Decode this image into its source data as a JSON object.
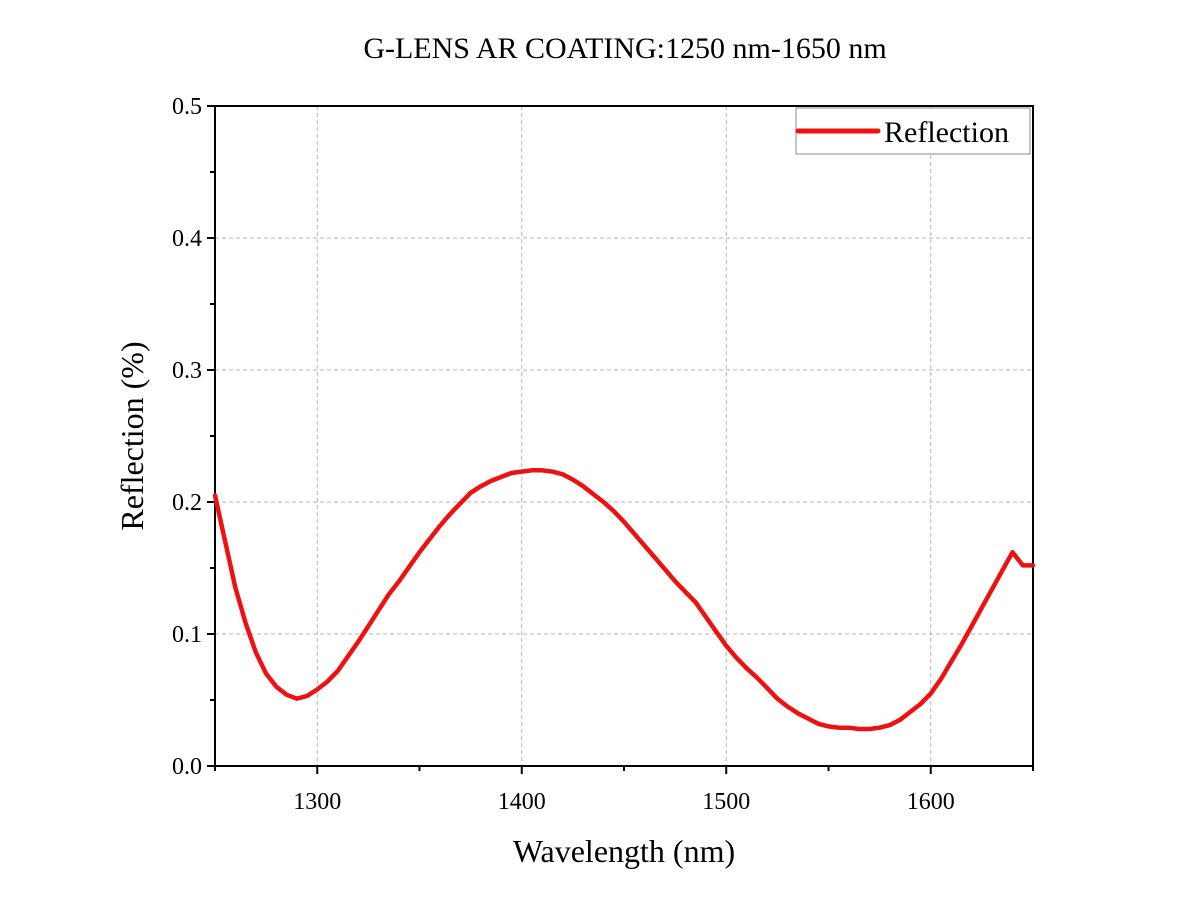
{
  "chart_data": {
    "type": "line",
    "title": "G-LENS AR COATING:1250 nm-1650 nm",
    "xlabel": "Wavelength (nm)",
    "ylabel": "Reflection (%)",
    "xlim": [
      1250,
      1650
    ],
    "ylim": [
      0.0,
      0.5
    ],
    "xticks": [
      1300,
      1400,
      1500,
      1600
    ],
    "xtick_labels": [
      "1300",
      "1400",
      "1500",
      "1600"
    ],
    "yticks": [
      0.0,
      0.1,
      0.2,
      0.3,
      0.4,
      0.5
    ],
    "ytick_labels": [
      "0.0",
      "0.1",
      "0.2",
      "0.3",
      "0.4",
      "0.5"
    ],
    "grid": true,
    "legend_position": "top-right",
    "series": [
      {
        "name": "Reflection",
        "color": "#ee1111",
        "x": [
          1250,
          1255,
          1260,
          1265,
          1270,
          1275,
          1280,
          1285,
          1290,
          1295,
          1300,
          1305,
          1310,
          1315,
          1320,
          1325,
          1330,
          1335,
          1340,
          1345,
          1350,
          1355,
          1360,
          1365,
          1370,
          1375,
          1380,
          1385,
          1390,
          1395,
          1400,
          1405,
          1410,
          1415,
          1420,
          1425,
          1430,
          1435,
          1440,
          1445,
          1450,
          1455,
          1460,
          1465,
          1470,
          1475,
          1480,
          1485,
          1490,
          1495,
          1500,
          1505,
          1510,
          1515,
          1520,
          1525,
          1530,
          1535,
          1540,
          1545,
          1550,
          1555,
          1560,
          1565,
          1570,
          1575,
          1580,
          1585,
          1590,
          1595,
          1600,
          1605,
          1610,
          1615,
          1620,
          1625,
          1630,
          1635,
          1640,
          1645,
          1650
        ],
        "y": [
          0.205,
          0.17,
          0.135,
          0.108,
          0.086,
          0.07,
          0.06,
          0.054,
          0.051,
          0.053,
          0.058,
          0.064,
          0.072,
          0.083,
          0.094,
          0.106,
          0.118,
          0.13,
          0.14,
          0.151,
          0.162,
          0.172,
          0.182,
          0.191,
          0.199,
          0.207,
          0.212,
          0.216,
          0.219,
          0.222,
          0.223,
          0.224,
          0.224,
          0.223,
          0.221,
          0.217,
          0.212,
          0.206,
          0.2,
          0.193,
          0.185,
          0.176,
          0.167,
          0.158,
          0.149,
          0.14,
          0.132,
          0.124,
          0.113,
          0.102,
          0.091,
          0.082,
          0.074,
          0.067,
          0.059,
          0.051,
          0.045,
          0.04,
          0.036,
          0.032,
          0.03,
          0.029,
          0.029,
          0.028,
          0.028,
          0.029,
          0.031,
          0.035,
          0.041,
          0.047,
          0.055,
          0.066,
          0.079,
          0.092,
          0.106,
          0.12,
          0.134,
          0.148,
          0.162,
          0.152,
          0.152
        ]
      }
    ]
  }
}
